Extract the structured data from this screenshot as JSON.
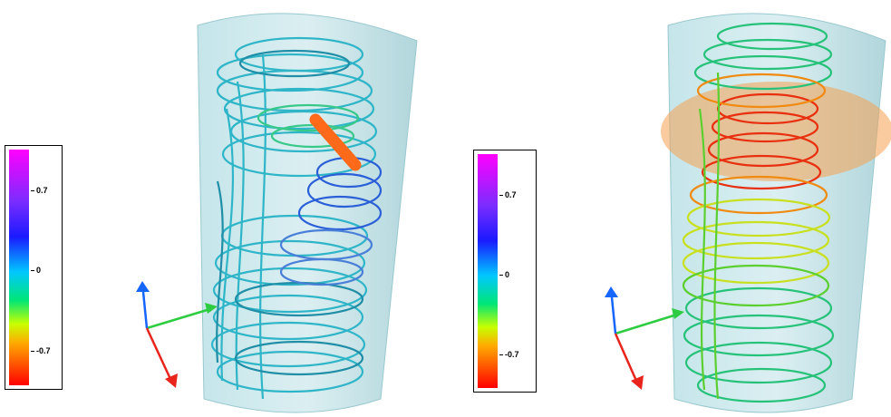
{
  "colorbar": {
    "ticks": [
      "0.7",
      "0",
      "-0.7"
    ]
  },
  "panels": [
    {
      "id": "left",
      "colormap": "cyan-dominant streamlines",
      "marker": "orange rod"
    },
    {
      "id": "right",
      "colormap": "green-yellow-red streamlines",
      "marker": "orange translucent disk"
    }
  ],
  "axes": {
    "x_color": "#2ecc40",
    "y_color": "#1565ff",
    "z_color": "#e8241c"
  },
  "colors": {
    "cylinder": "#a9d6dc",
    "rod": "#ff6a1a",
    "disk": "#f5a050"
  }
}
